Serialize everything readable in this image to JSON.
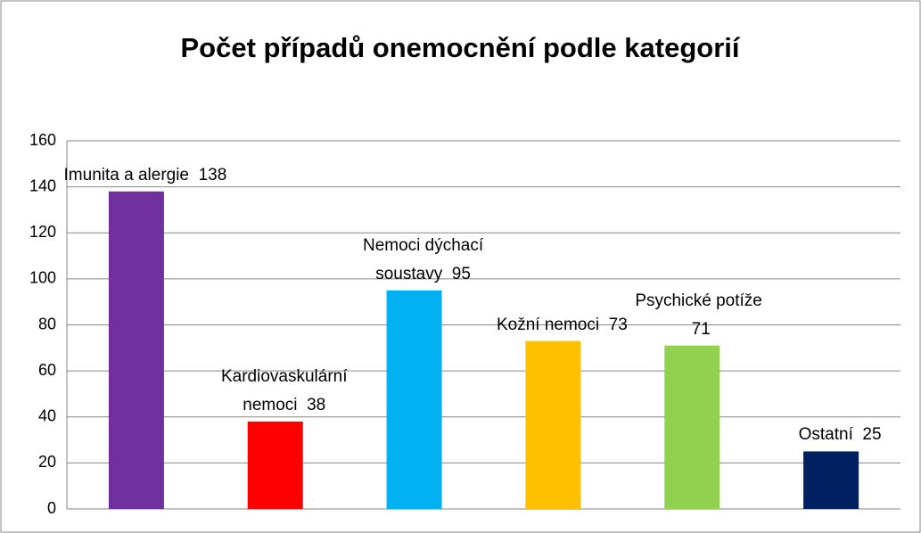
{
  "chart_data": {
    "type": "bar",
    "title": "Počet případů onemocnění podle kategorií",
    "categories": [
      "Imunita a alergie",
      "Kardiovaskulární nemoci",
      "Nemoci dýchací soustavy",
      "Kožní nemoci",
      "Psychické potíže",
      "Ostatní"
    ],
    "values": [
      138,
      38,
      95,
      73,
      71,
      25
    ],
    "colors": [
      "#7030a0",
      "#ff0000",
      "#00b0f0",
      "#ffc000",
      "#92d050",
      "#002060"
    ],
    "ylim": [
      0,
      160
    ],
    "yticks": [
      0,
      20,
      40,
      60,
      80,
      100,
      120,
      140,
      160
    ],
    "grid": true
  }
}
